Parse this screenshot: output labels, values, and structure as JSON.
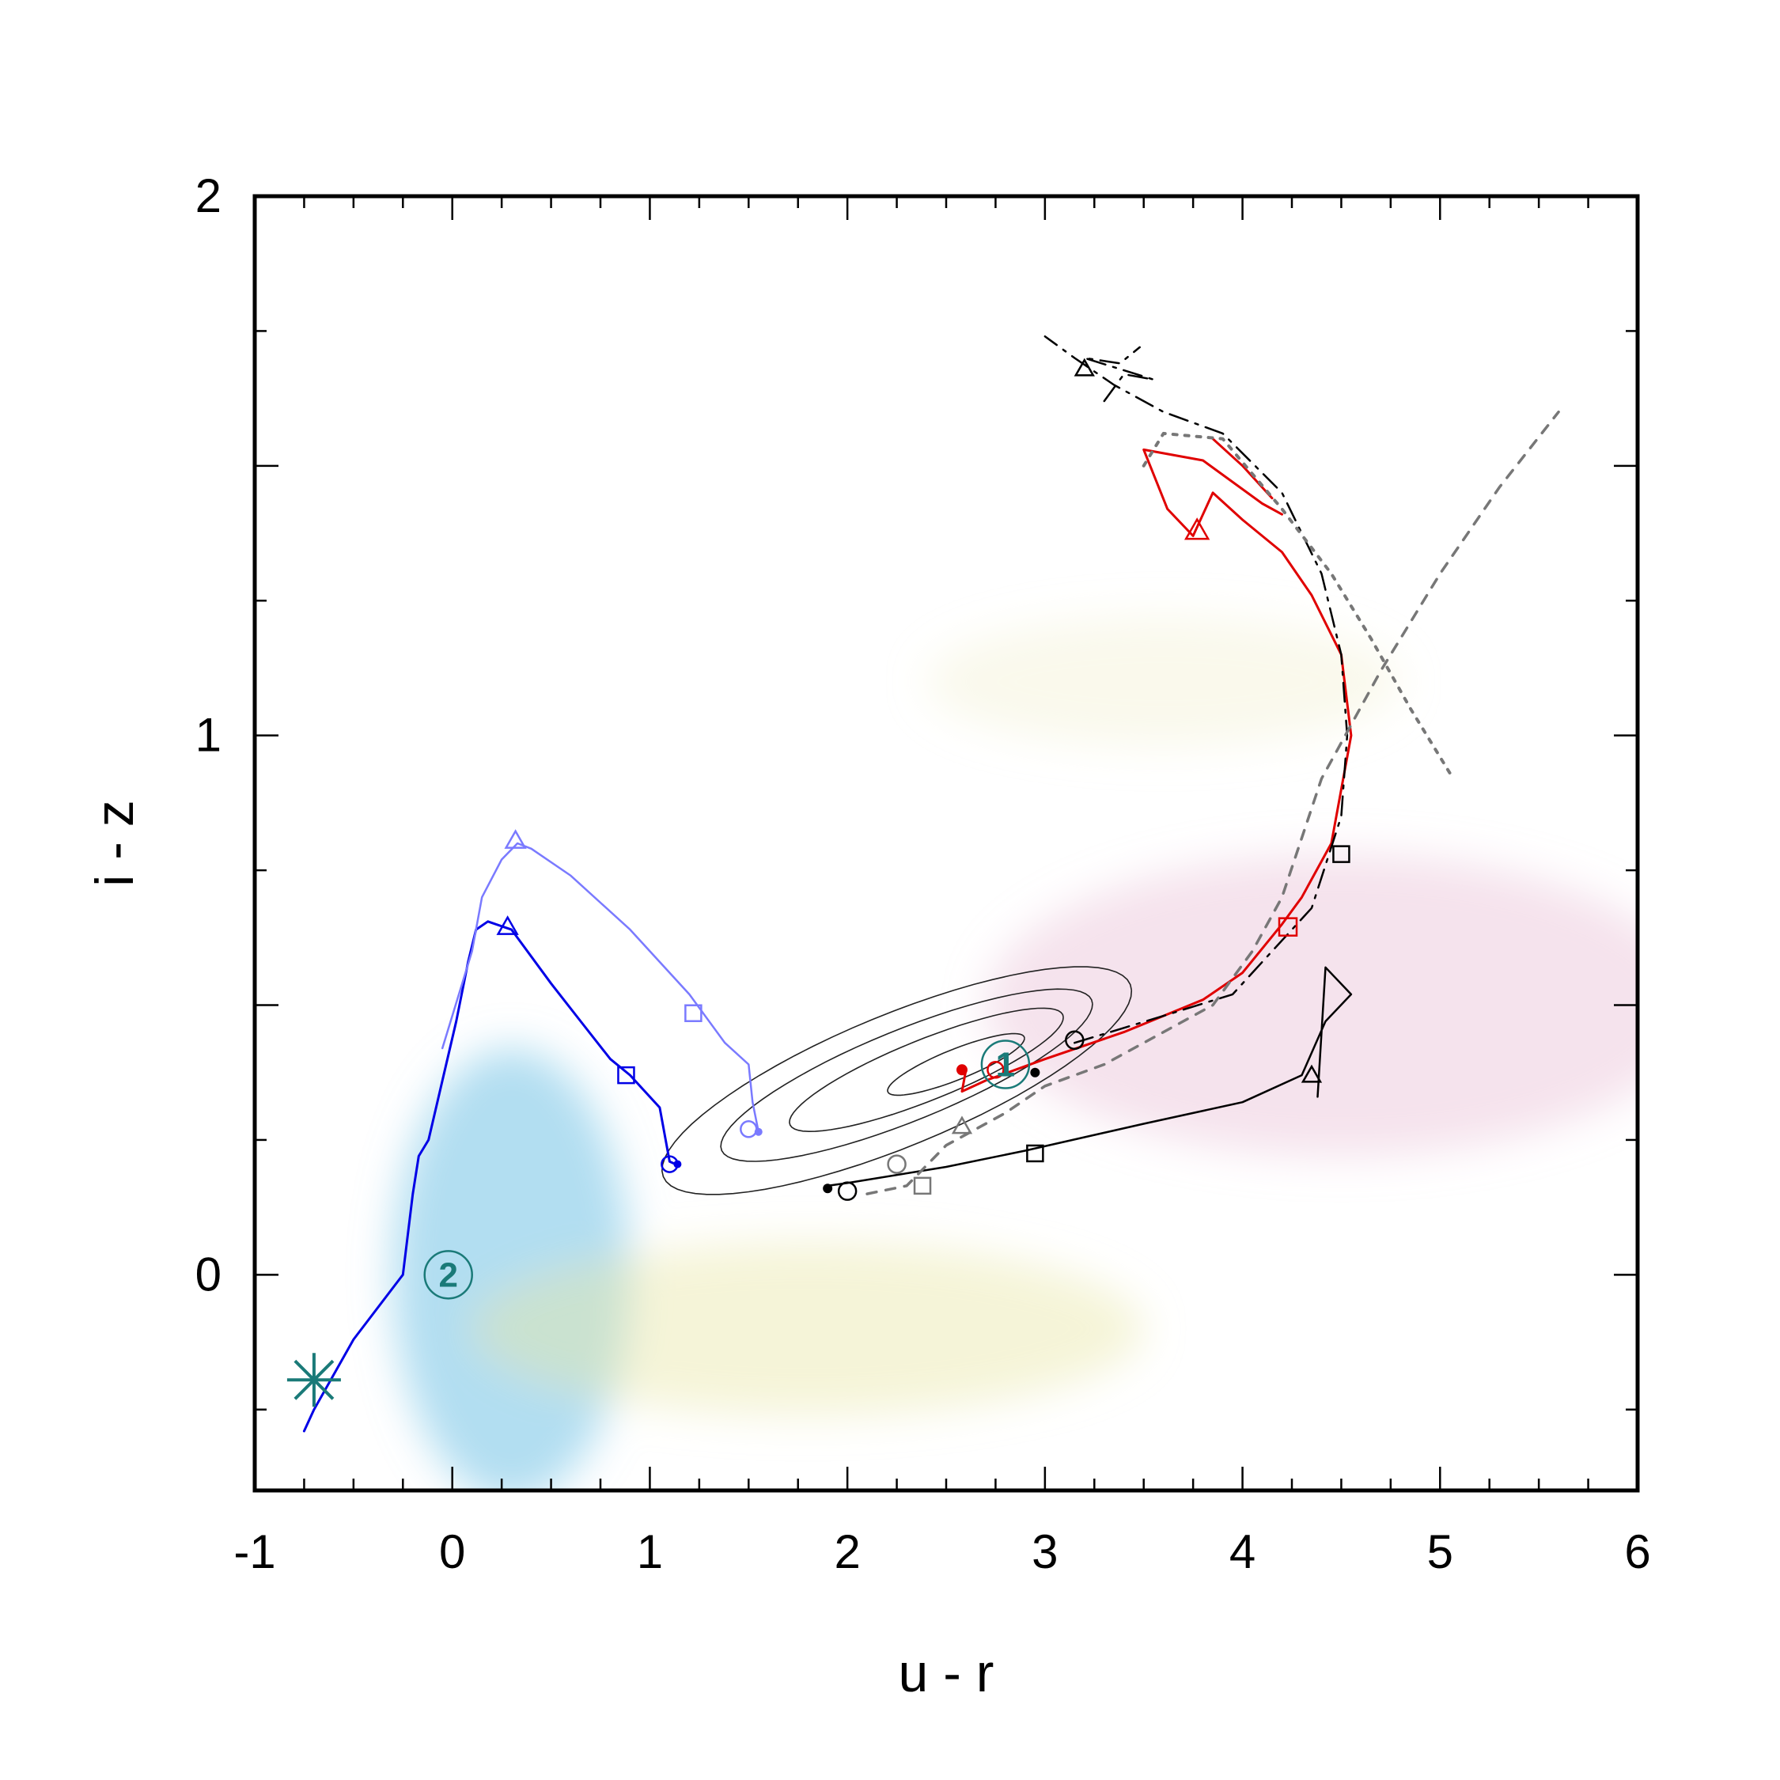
{
  "chart_data": {
    "type": "line",
    "title": "",
    "xlabel": "u - r",
    "ylabel": "i - z",
    "xlim": [
      -1,
      6
    ],
    "ylim": [
      -0.4,
      2
    ],
    "grid": false,
    "x_ticks": [
      {
        "value": -1,
        "label": "-1"
      },
      {
        "value": 0,
        "label": "0"
      },
      {
        "value": 1,
        "label": "1"
      },
      {
        "value": 2,
        "label": "2"
      },
      {
        "value": 3,
        "label": "3"
      },
      {
        "value": 4,
        "label": "4"
      },
      {
        "value": 5,
        "label": "5"
      },
      {
        "value": 6,
        "label": "6"
      }
    ],
    "y_ticks": [
      {
        "value": 0,
        "label": "0"
      },
      {
        "value": 1,
        "label": "1"
      },
      {
        "value": 2,
        "label": "2"
      }
    ],
    "density_regions": [
      {
        "color": "#7ec8e8",
        "cx": 0.3,
        "cy": 0.0,
        "rx": 0.6,
        "ry": 0.42,
        "opacity": 0.6
      },
      {
        "color": "#e9e7a8",
        "cx": 1.8,
        "cy": -0.1,
        "rx": 1.7,
        "ry": 0.16,
        "opacity": 0.45
      },
      {
        "color": "#e8c0d8",
        "cx": 4.5,
        "cy": 0.5,
        "rx": 1.8,
        "ry": 0.28,
        "opacity": 0.45
      },
      {
        "color": "#f0efc8",
        "cx": 3.6,
        "cy": 1.1,
        "rx": 1.2,
        "ry": 0.12,
        "opacity": 0.35
      }
    ],
    "contours": [
      {
        "cx": 2.25,
        "cy": 0.36,
        "rx": 1.2,
        "ry": 0.13,
        "angle": 0.14
      },
      {
        "cx": 2.3,
        "cy": 0.37,
        "rx": 0.95,
        "ry": 0.09,
        "angle": 0.14
      },
      {
        "cx": 2.4,
        "cy": 0.38,
        "rx": 0.7,
        "ry": 0.06,
        "angle": 0.14
      },
      {
        "cx": 2.55,
        "cy": 0.39,
        "rx": 0.35,
        "ry": 0.03,
        "angle": 0.14
      }
    ],
    "series": [
      {
        "color": "#0000e6",
        "dash": "",
        "width": 3,
        "x": [
          -0.75,
          -0.7,
          -0.5,
          -0.25,
          -0.2,
          -0.17,
          -0.12,
          -0.05,
          0.02,
          0.08,
          0.12,
          0.18,
          0.3,
          0.5,
          0.65,
          0.8,
          0.9,
          0.95,
          1.05,
          1.08,
          1.1,
          1.13
        ],
        "y": [
          -0.29,
          -0.25,
          -0.12,
          0.0,
          0.15,
          0.22,
          0.25,
          0.36,
          0.47,
          0.58,
          0.64,
          0.655,
          0.64,
          0.54,
          0.47,
          0.4,
          0.37,
          0.35,
          0.31,
          0.25,
          0.21,
          0.205
        ]
      },
      {
        "color": "#7a7aff",
        "dash": "",
        "width": 2.5,
        "x": [
          -0.05,
          0.0,
          0.05,
          0.1,
          0.15,
          0.25,
          0.33,
          0.4,
          0.6,
          0.9,
          1.2,
          1.38,
          1.5,
          1.52,
          1.55
        ],
        "y": [
          0.42,
          0.48,
          0.54,
          0.6,
          0.7,
          0.77,
          0.8,
          0.79,
          0.74,
          0.64,
          0.52,
          0.43,
          0.39,
          0.32,
          0.265
        ]
      },
      {
        "color": "#000000",
        "dash": "",
        "width": 2.5,
        "x": [
          1.9,
          2.0,
          2.5,
          2.9,
          3.5,
          4.0,
          4.3,
          4.42,
          4.55,
          4.42,
          4.38
        ],
        "y": [
          0.165,
          0.17,
          0.2,
          0.23,
          0.28,
          0.32,
          0.37,
          0.47,
          0.52,
          0.57,
          0.33
        ]
      },
      {
        "color": "#e00000",
        "dash": "",
        "width": 3,
        "x": [
          2.6,
          2.58,
          2.7,
          2.85,
          3.0,
          3.4,
          3.8,
          4.0,
          4.2,
          4.3,
          4.45,
          4.55,
          4.5,
          4.35,
          4.2,
          4.0,
          3.85,
          3.75,
          3.62,
          3.5,
          3.8,
          4.1,
          4.2
        ],
        "y": [
          0.38,
          0.34,
          0.36,
          0.38,
          0.4,
          0.45,
          0.51,
          0.56,
          0.65,
          0.7,
          0.8,
          1.0,
          1.15,
          1.26,
          1.34,
          1.4,
          1.45,
          1.37,
          1.42,
          1.53,
          1.51,
          1.43,
          1.41
        ]
      },
      {
        "color": "#e00000",
        "dash": "",
        "width": 3,
        "x": [
          3.85,
          4.0,
          4.15
        ],
        "y": [
          1.55,
          1.5,
          1.44
        ]
      },
      {
        "color": "#000000",
        "dash": "24,10,4,10",
        "width": 2.5,
        "x": [
          3.15,
          3.6,
          3.95,
          4.1,
          4.35,
          4.5,
          4.53,
          4.5,
          4.4,
          4.2,
          3.9,
          3.6,
          3.35,
          3.15,
          3.0
        ],
        "y": [
          0.43,
          0.48,
          0.52,
          0.58,
          0.68,
          0.85,
          1.0,
          1.15,
          1.3,
          1.45,
          1.56,
          1.6,
          1.65,
          1.7,
          1.74
        ]
      },
      {
        "color": "#000000",
        "dash": "24,10,4,10",
        "width": 2.5,
        "x": [
          3.3,
          3.4,
          3.55,
          3.2,
          3.38,
          3.48
        ],
        "y": [
          1.62,
          1.67,
          1.66,
          1.7,
          1.69,
          1.72
        ]
      },
      {
        "color": "#777777",
        "dash": "12,12",
        "width": 3.5,
        "x": [
          2.1,
          2.3,
          2.5,
          2.8,
          3.0,
          3.3,
          3.55,
          3.85,
          4.05,
          4.2,
          4.4,
          4.7,
          5.0,
          5.3,
          5.6
        ],
        "y": [
          0.15,
          0.165,
          0.24,
          0.3,
          0.35,
          0.39,
          0.44,
          0.5,
          0.6,
          0.7,
          0.92,
          1.12,
          1.3,
          1.46,
          1.6
        ]
      },
      {
        "color": "#777777",
        "dash": "5,10",
        "width": 4,
        "x": [
          3.5,
          3.6,
          3.9,
          4.2,
          4.45,
          4.65,
          4.85,
          5.05
        ],
        "y": [
          1.5,
          1.56,
          1.55,
          1.42,
          1.3,
          1.18,
          1.05,
          0.93
        ]
      }
    ],
    "markers": [
      {
        "type": "triangle",
        "x": 0.32,
        "y": 0.805,
        "color": "#7a7aff",
        "size": 12
      },
      {
        "type": "square",
        "x": 1.22,
        "y": 0.485,
        "color": "#7a7aff",
        "size": 10
      },
      {
        "type": "circle",
        "x": 1.5,
        "y": 0.27,
        "color": "#7a7aff",
        "size": 10
      },
      {
        "type": "dot",
        "x": 1.55,
        "y": 0.265,
        "color": "#7a7aff",
        "size": 5
      },
      {
        "type": "triangle",
        "x": 0.28,
        "y": 0.645,
        "color": "#0000e6",
        "size": 12
      },
      {
        "type": "square",
        "x": 0.88,
        "y": 0.37,
        "color": "#0000e6",
        "size": 10
      },
      {
        "type": "circle",
        "x": 1.1,
        "y": 0.205,
        "color": "#0000e6",
        "size": 10
      },
      {
        "type": "dot",
        "x": 1.14,
        "y": 0.205,
        "color": "#0000e6",
        "size": 5
      },
      {
        "type": "circle",
        "x": 2.0,
        "y": 0.155,
        "color": "#000000",
        "size": 11
      },
      {
        "type": "dot",
        "x": 1.9,
        "y": 0.16,
        "color": "#000000",
        "size": 6
      },
      {
        "type": "square",
        "x": 2.95,
        "y": 0.225,
        "color": "#000000",
        "size": 10
      },
      {
        "type": "triangle",
        "x": 4.35,
        "y": 0.37,
        "color": "#000000",
        "size": 11
      },
      {
        "type": "circle",
        "x": 2.25,
        "y": 0.205,
        "color": "#777777",
        "size": 11
      },
      {
        "type": "square",
        "x": 2.38,
        "y": 0.165,
        "color": "#777777",
        "size": 10
      },
      {
        "type": "triangle",
        "x": 2.58,
        "y": 0.275,
        "color": "#777777",
        "size": 11
      },
      {
        "type": "circle",
        "x": 3.15,
        "y": 0.435,
        "color": "#000000",
        "size": 11
      },
      {
        "type": "dot",
        "x": 2.95,
        "y": 0.375,
        "color": "#000000",
        "size": 6
      },
      {
        "type": "square",
        "x": 4.5,
        "y": 0.78,
        "color": "#000000",
        "size": 10
      },
      {
        "type": "triangle",
        "x": 3.2,
        "y": 1.68,
        "color": "#000000",
        "size": 11
      },
      {
        "type": "square",
        "x": 4.23,
        "y": 0.645,
        "color": "#e00000",
        "size": 11
      },
      {
        "type": "triangle",
        "x": 3.77,
        "y": 1.38,
        "color": "#e00000",
        "size": 14
      },
      {
        "type": "circle",
        "x": 2.75,
        "y": 0.38,
        "color": "#e00000",
        "size": 10
      },
      {
        "type": "dot",
        "x": 2.58,
        "y": 0.38,
        "color": "#e00000",
        "size": 7
      },
      {
        "type": "circle",
        "x": 2.8,
        "y": 0.39,
        "color": "#1a7a78",
        "size": 30
      },
      {
        "type": "circle",
        "x": -0.02,
        "y": 0.0,
        "color": "#1a7a78",
        "size": 30
      },
      {
        "type": "asterisk",
        "x": -0.7,
        "y": -0.195,
        "color": "#1a7a78",
        "size": 34
      }
    ],
    "marker_labels": [
      {
        "text": "1",
        "x": 2.8,
        "y": 0.39,
        "color": "#1a7a78"
      },
      {
        "text": "2",
        "x": -0.02,
        "y": 0.0,
        "color": "#1a7a78"
      }
    ]
  }
}
